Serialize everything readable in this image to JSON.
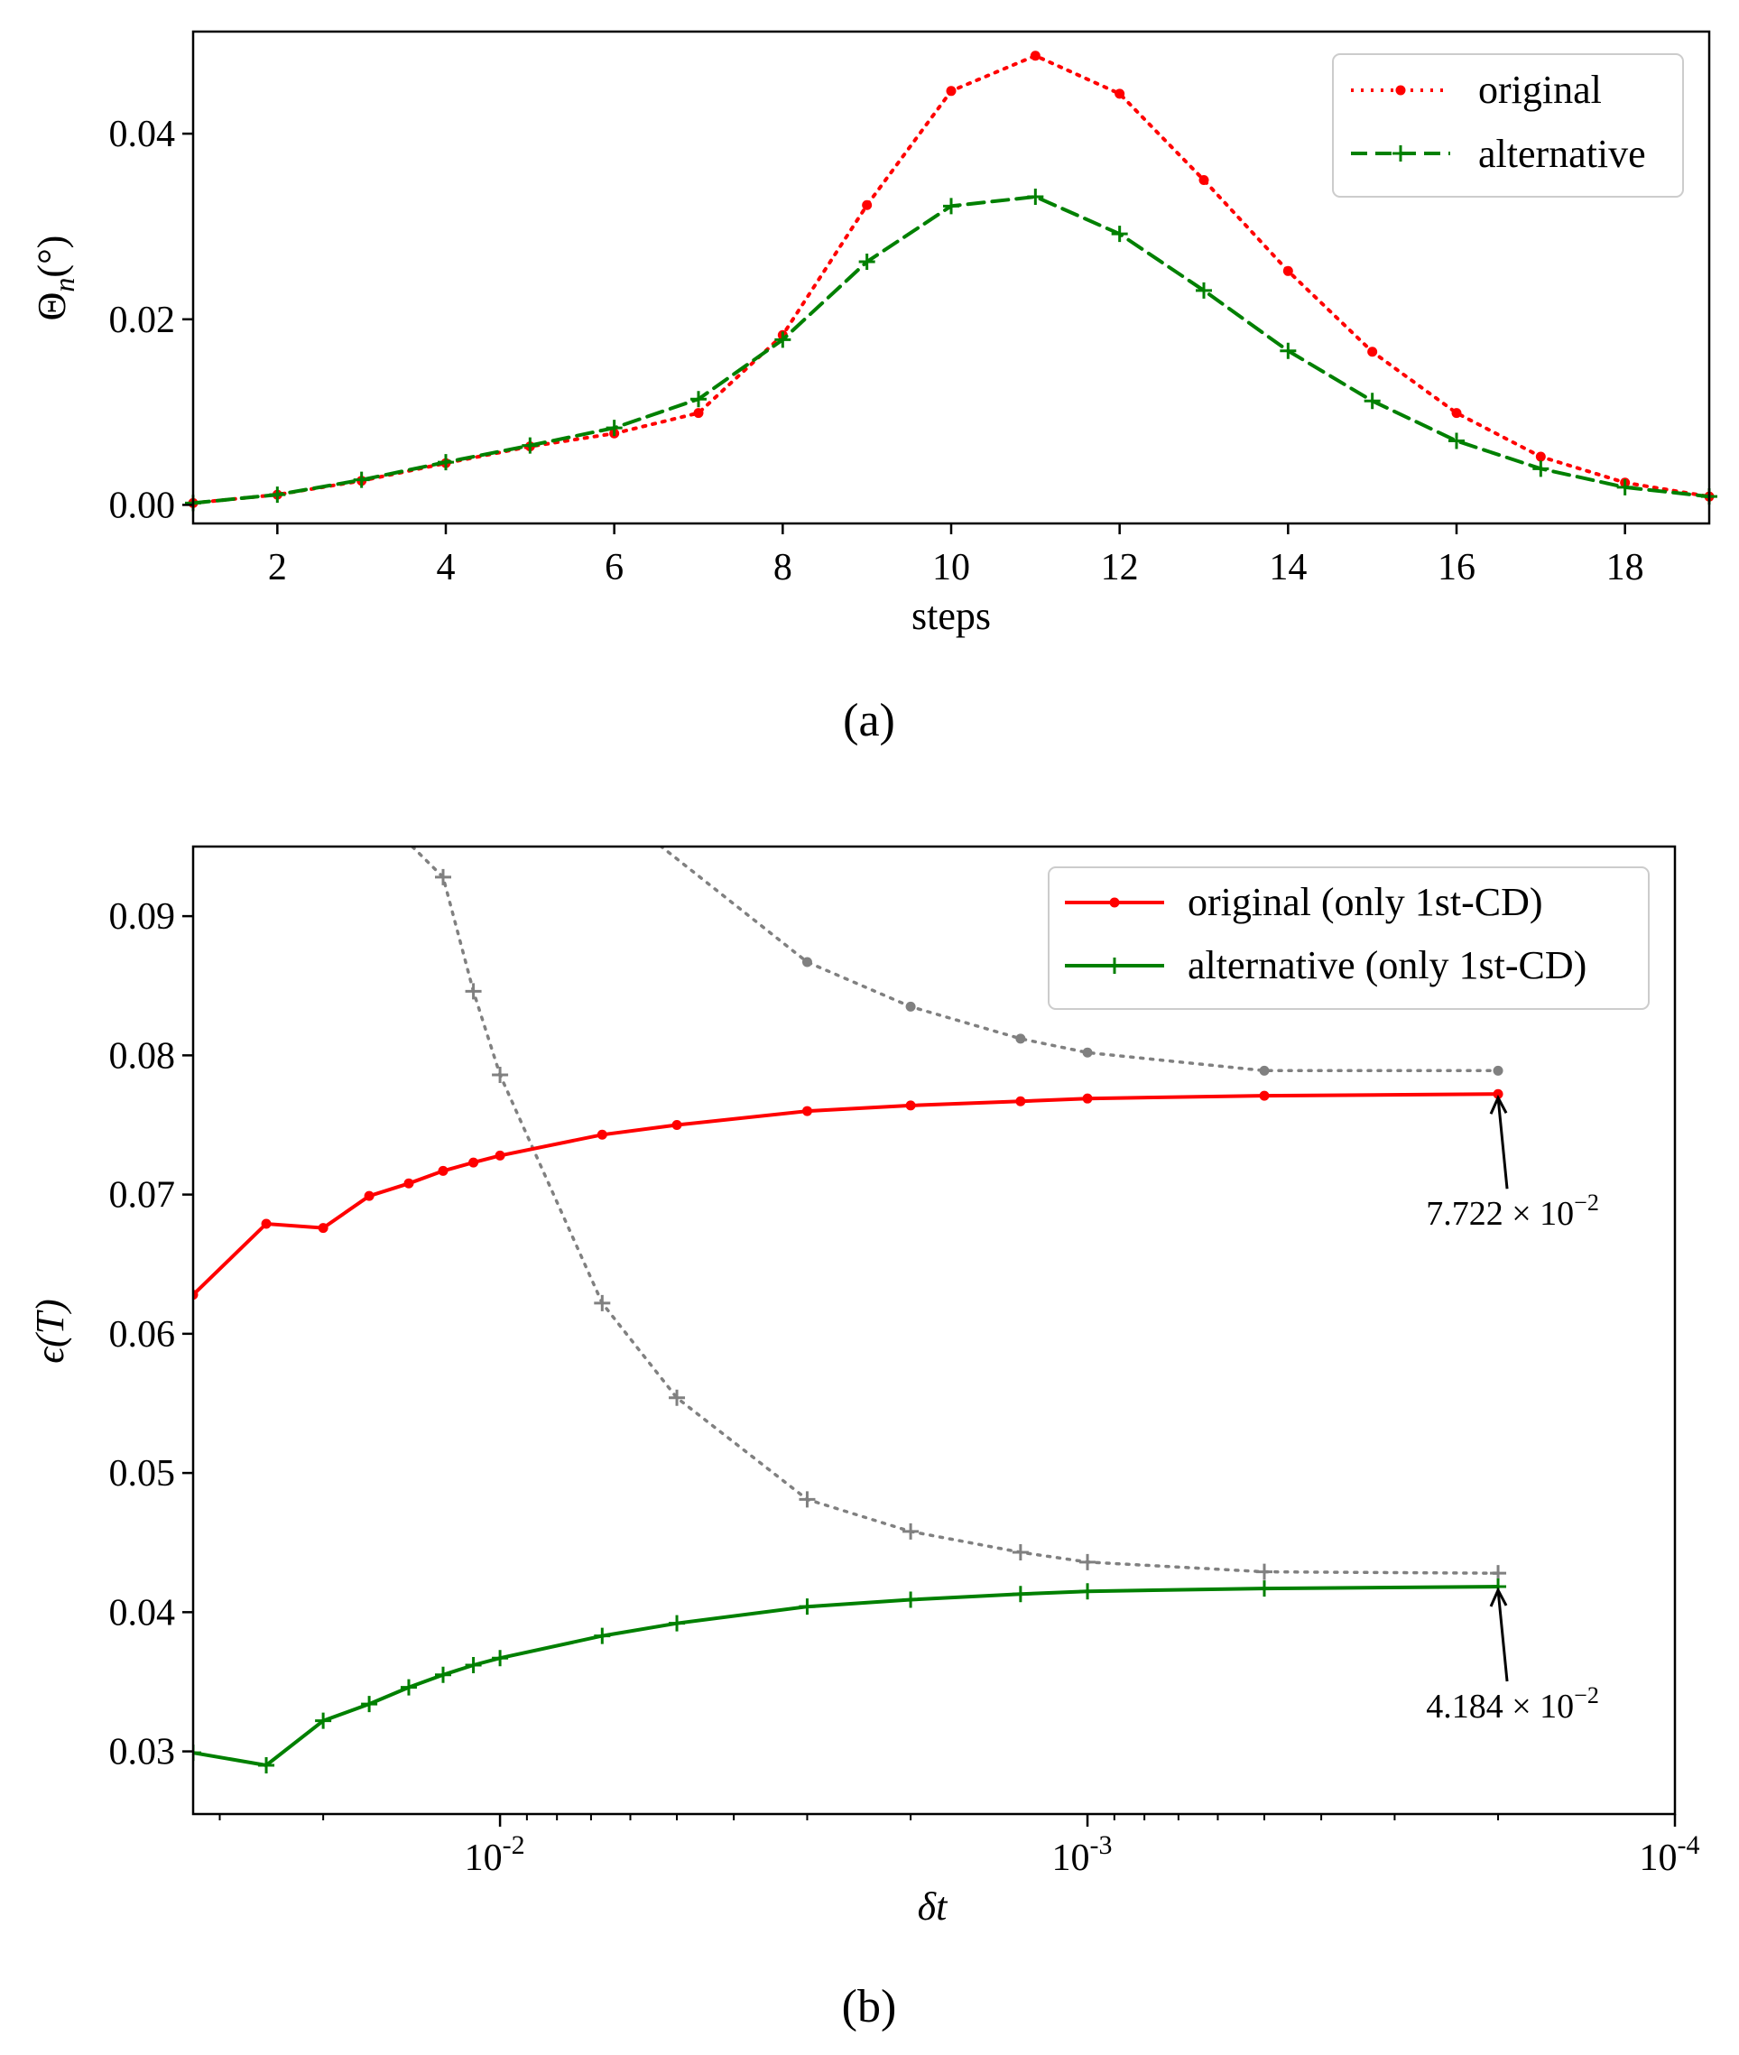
{
  "chart_data": [
    {
      "type": "line",
      "panel": "a",
      "caption": "(a)",
      "title": "",
      "xlabel": "steps",
      "ylabel": "Θn(°)",
      "xlim": [
        1,
        19
      ],
      "ylim": [
        -0.002,
        0.051
      ],
      "xticks": [
        2,
        4,
        6,
        8,
        10,
        12,
        14,
        16,
        18
      ],
      "xtick_labels": [
        "2",
        "4",
        "6",
        "8",
        "10",
        "12",
        "14",
        "16",
        "18"
      ],
      "yticks": [
        0.0,
        0.02,
        0.04
      ],
      "ytick_labels": [
        "0.00",
        "0.02",
        "0.04"
      ],
      "legend_position": "top-right",
      "grid": false,
      "x": [
        1,
        2,
        3,
        4,
        5,
        6,
        7,
        8,
        9,
        10,
        11,
        12,
        13,
        14,
        15,
        16,
        17,
        18,
        19
      ],
      "series": [
        {
          "name": "original",
          "color": "#ff0000",
          "line_style": "dotted",
          "marker": "circle",
          "values": [
            0.0002,
            0.0011,
            0.0026,
            0.0045,
            0.0063,
            0.0077,
            0.0099,
            0.0183,
            0.0323,
            0.0446,
            0.0484,
            0.0443,
            0.035,
            0.0252,
            0.0165,
            0.0099,
            0.0052,
            0.0024,
            0.0009
          ]
        },
        {
          "name": "alternative",
          "color": "#008000",
          "line_style": "dashed",
          "marker": "plus",
          "values": [
            0.0002,
            0.0011,
            0.0027,
            0.0046,
            0.0064,
            0.0083,
            0.0114,
            0.0178,
            0.0262,
            0.0322,
            0.0332,
            0.0292,
            0.0231,
            0.0166,
            0.0112,
            0.0069,
            0.0039,
            0.0019,
            0.0009
          ]
        }
      ]
    },
    {
      "type": "line",
      "panel": "b",
      "caption": "(b)",
      "title": "",
      "xlabel": "δt",
      "ylabel": "ϵ(T)",
      "x_scale": "log",
      "x_direction": "reversed",
      "xlim": [
        0.0333,
        0.0001
      ],
      "ylim": [
        0.0255,
        0.095
      ],
      "xticks": [
        0.01,
        0.001,
        0.0001
      ],
      "xtick_labels": [
        {
          "base": "10",
          "exp": "-2"
        },
        {
          "base": "10",
          "exp": "-3"
        },
        {
          "base": "10",
          "exp": "-4"
        }
      ],
      "yticks": [
        0.03,
        0.04,
        0.05,
        0.06,
        0.07,
        0.08,
        0.09
      ],
      "ytick_labels": [
        "0.03",
        "0.04",
        "0.05",
        "0.06",
        "0.07",
        "0.08",
        "0.09"
      ],
      "legend_position": "top-right",
      "grid": false,
      "series": [
        {
          "name": "original (only 1st-CD)",
          "color": "#ff0000",
          "line_style": "solid",
          "marker": "circle",
          "x": [
            0.0333,
            0.025,
            0.02,
            0.0167,
            0.0143,
            0.0125,
            0.0111,
            0.01,
            0.0067,
            0.005,
            0.003,
            0.002,
            0.0013,
            0.001,
            0.0005,
            0.0002
          ],
          "values": [
            0.0628,
            0.0679,
            0.0676,
            0.0699,
            0.0708,
            0.0717,
            0.0723,
            0.0728,
            0.0743,
            0.075,
            0.076,
            0.0764,
            0.0767,
            0.0769,
            0.0771,
            0.07722
          ]
        },
        {
          "name": "alternative (only 1st-CD)",
          "color": "#008000",
          "line_style": "solid",
          "marker": "plus",
          "x": [
            0.0333,
            0.025,
            0.02,
            0.0167,
            0.0143,
            0.0125,
            0.0111,
            0.01,
            0.0067,
            0.005,
            0.003,
            0.002,
            0.0013,
            0.001,
            0.0005,
            0.0002
          ],
          "values": [
            0.0299,
            0.029,
            0.0322,
            0.0334,
            0.0346,
            0.0355,
            0.0362,
            0.0367,
            0.0383,
            0.0392,
            0.0404,
            0.0409,
            0.0413,
            0.0415,
            0.0417,
            0.04184
          ]
        },
        {
          "name": "",
          "color": "#808080",
          "line_style": "dotted",
          "marker": "circle",
          "x": [
            0.0055,
            0.003,
            0.002,
            0.0013,
            0.001,
            0.0005,
            0.0002
          ],
          "values": [
            0.0955,
            0.0867,
            0.0835,
            0.0812,
            0.0802,
            0.0789,
            0.0789
          ]
        },
        {
          "name": "",
          "color": "#808080",
          "line_style": "dotted",
          "marker": "plus",
          "x": [
            0.0145,
            0.0125,
            0.0111,
            0.01,
            0.0067,
            0.005,
            0.003,
            0.002,
            0.0013,
            0.001,
            0.0005,
            0.0002
          ],
          "values": [
            0.0955,
            0.0928,
            0.0846,
            0.0786,
            0.0622,
            0.0554,
            0.0481,
            0.0458,
            0.0443,
            0.0436,
            0.0429,
            0.0428
          ]
        }
      ],
      "annotations": [
        {
          "text": "7.722 × 10",
          "exp": "−2",
          "x": 0.0002,
          "y": 0.07722
        },
        {
          "text": "4.184 × 10",
          "exp": "−2",
          "x": 0.0002,
          "y": 0.04184
        }
      ]
    }
  ]
}
